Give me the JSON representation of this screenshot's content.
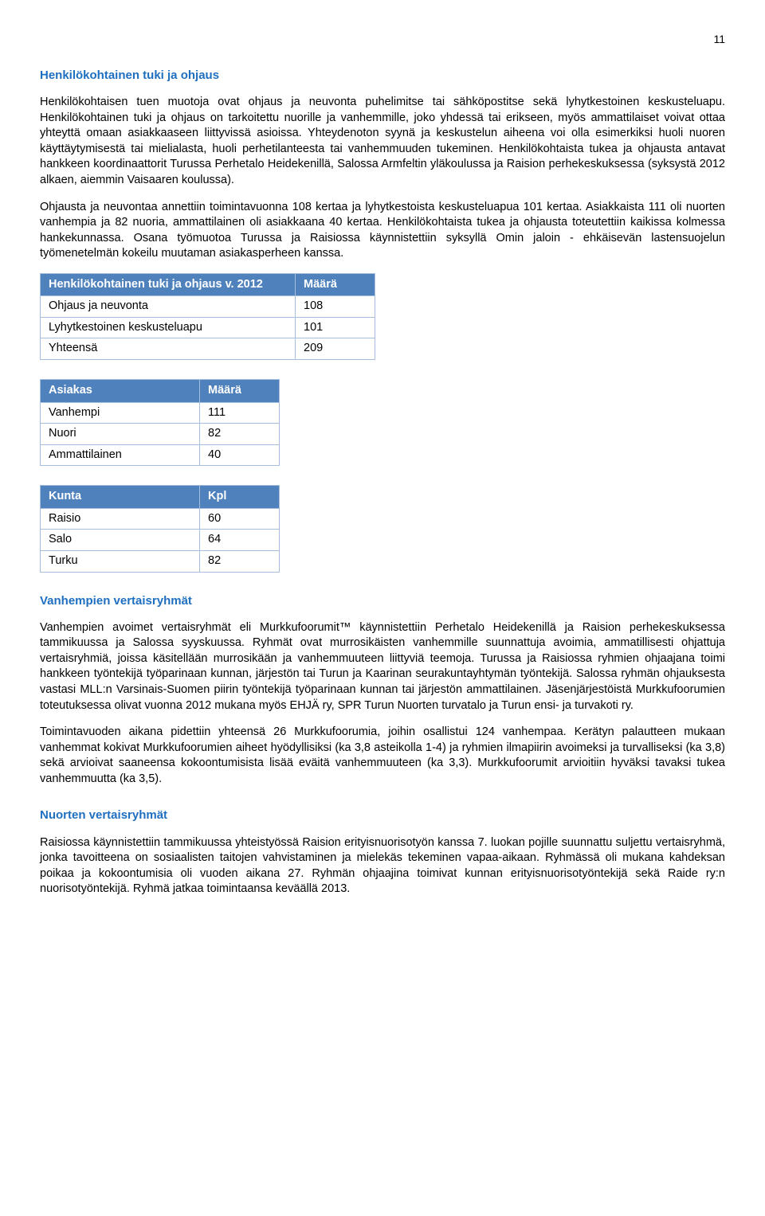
{
  "page_number": "11",
  "section1": {
    "heading": "Henkilökohtainen tuki ja ohjaus",
    "para1": "Henkilökohtaisen tuen muotoja ovat ohjaus ja neuvonta puhelimitse tai sähköpostitse sekä lyhytkestoinen keskusteluapu. Henkilökohtainen tuki ja ohjaus on tarkoitettu nuorille ja vanhemmille, joko yhdessä tai erikseen, myös ammattilaiset voivat ottaa yhteyttä omaan asiakkaaseen liittyvissä asioissa. Yhteydenoton syynä ja keskustelun aiheena voi olla esimerkiksi huoli nuoren käyttäytymisestä tai mielialasta, huoli perhetilanteesta tai vanhemmuuden tukeminen. Henkilökohtaista tukea ja ohjausta antavat hankkeen koordinaattorit Turussa Perhetalo Heidekenillä, Salossa Armfeltin yläkoulussa ja Raision perhekeskuksessa (syksystä 2012 alkaen, aiemmin Vaisaaren koulussa).",
    "para2": "Ohjausta ja neuvontaa annettiin toimintavuonna 108 kertaa ja lyhytkestoista keskusteluapua 101 kertaa. Asiakkaista 111 oli nuorten vanhempia ja 82 nuoria, ammattilainen oli asiakkaana 40 kertaa. Henkilökohtaista tukea ja ohjausta toteutettiin kaikissa kolmessa hankekunnassa. Osana työmuotoa Turussa ja Raisiossa käynnistettiin syksyllä Omin jaloin - ehkäisevän lastensuojelun työmenetelmän kokeilu muutaman asiakasperheen kanssa."
  },
  "table1": {
    "header": [
      "Henkilökohtainen tuki ja ohjaus v. 2012",
      "Määrä"
    ],
    "rows": [
      [
        "Ohjaus ja neuvonta",
        "108"
      ],
      [
        "Lyhytkestoinen keskusteluapu",
        "101"
      ],
      [
        "Yhteensä",
        "209"
      ]
    ]
  },
  "table2": {
    "header": [
      "Asiakas",
      "Määrä"
    ],
    "rows": [
      [
        "Vanhempi",
        "111"
      ],
      [
        "Nuori",
        "82"
      ],
      [
        "Ammattilainen",
        "40"
      ]
    ]
  },
  "table3": {
    "header": [
      "Kunta",
      "Kpl"
    ],
    "rows": [
      [
        "Raisio",
        "60"
      ],
      [
        "Salo",
        "64"
      ],
      [
        "Turku",
        "82"
      ]
    ]
  },
  "section2": {
    "heading": "Vanhempien vertaisryhmät",
    "para1": "Vanhempien avoimet vertaisryhmät eli Murkkufoorumit™ käynnistettiin Perhetalo Heidekenillä ja Raision perhekeskuksessa tammikuussa ja Salossa syyskuussa. Ryhmät ovat murrosikäisten vanhemmille suunnattuja avoimia, ammatillisesti ohjattuja vertaisryhmiä, joissa käsitellään murrosikään ja vanhemmuuteen liittyviä teemoja. Turussa ja Raisiossa ryhmien ohjaajana toimi hankkeen työntekijä työparinaan kunnan, järjestön tai Turun ja Kaarinan seurakuntayhtymän työntekijä. Salossa ryhmän ohjauksesta vastasi MLL:n Varsinais-Suomen piirin työntekijä työparinaan kunnan tai järjestön ammattilainen. Jäsenjärjestöistä Murkkufoorumien toteutuksessa olivat vuonna 2012 mukana myös EHJÄ ry, SPR Turun Nuorten turvatalo ja Turun ensi- ja turvakoti ry.",
    "para2": "Toimintavuoden aikana pidettiin yhteensä 26 Murkkufoorumia, joihin osallistui 124 vanhempaa. Kerätyn palautteen mukaan vanhemmat kokivat Murkkufoorumien aiheet hyödyllisiksi (ka 3,8 asteikolla 1-4) ja ryhmien ilmapiirin avoimeksi ja turvalliseksi (ka 3,8) sekä arvioivat saaneensa kokoontumisista lisää eväitä vanhemmuuteen (ka 3,3). Murkkufoorumit arvioitiin hyväksi tavaksi tukea vanhemmuutta (ka 3,5)."
  },
  "section3": {
    "heading": "Nuorten vertaisryhmät",
    "para1": "Raisiossa käynnistettiin tammikuussa yhteistyössä Raision erityisnuorisotyön kanssa 7. luokan pojille suunnattu suljettu vertaisryhmä, jonka tavoitteena on sosiaalisten taitojen vahvistaminen ja mielekäs tekeminen vapaa-aikaan. Ryhmässä oli mukana kahdeksan poikaa ja kokoontumisia oli vuoden aikana 27. Ryhmän ohjaajina toimivat kunnan erityisnuorisotyöntekijä sekä Raide ry:n nuorisotyöntekijä. Ryhmä jatkaa toimintaansa keväällä 2013."
  },
  "colors": {
    "heading": "#1f6fc1",
    "table_header_bg": "#4f81bd",
    "table_header_fg": "#ffffff",
    "border": "#a7bfde",
    "body_text": "#000000"
  }
}
